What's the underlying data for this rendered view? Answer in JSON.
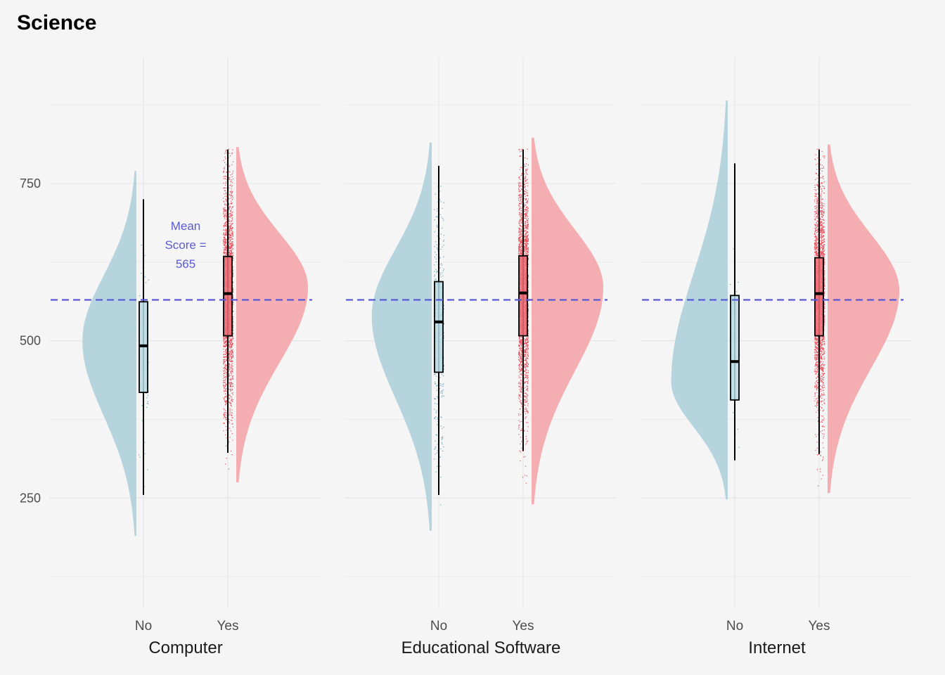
{
  "chart_data": {
    "type": "raincloud",
    "title": "Science",
    "y_ticks": [
      250,
      500,
      750
    ],
    "y_range": [
      75,
      950
    ],
    "categories": [
      "No",
      "Yes"
    ],
    "mean_line": {
      "value": 565,
      "color": "#5a5ad6"
    },
    "annotation": {
      "lines": [
        "Mean",
        "Score =",
        "565"
      ]
    },
    "colors": {
      "No": "#aed0db",
      "Yes": "#f4a5aa",
      "No_points": "#5f9fb3",
      "Yes_points": "#e8505d",
      "No_box": "#b8dbe5",
      "Yes_box": "#f07078"
    },
    "panels": [
      {
        "label": "Computer",
        "groups": {
          "No": {
            "min": 255,
            "q1": 418,
            "median": 492,
            "q3": 562,
            "max": 725,
            "density_min": 190,
            "density_max": 770,
            "density_mode": 500,
            "density_width": 0.64,
            "n_points": 60
          },
          "Yes": {
            "min": 322,
            "q1": 508,
            "median": 575,
            "q3": 634,
            "max": 804,
            "density_min": 275,
            "density_max": 808,
            "density_mode": 585,
            "density_width": 0.85,
            "n_points": 2500
          }
        }
      },
      {
        "label": "Educational Software",
        "groups": {
          "No": {
            "min": 255,
            "q1": 450,
            "median": 530,
            "q3": 594,
            "max": 778,
            "density_min": 198,
            "density_max": 815,
            "density_mode": 540,
            "density_width": 0.71,
            "n_points": 350
          },
          "Yes": {
            "min": 325,
            "q1": 508,
            "median": 576,
            "q3": 635,
            "max": 804,
            "density_min": 240,
            "density_max": 823,
            "density_mode": 585,
            "density_width": 0.85,
            "n_points": 2500
          }
        }
      },
      {
        "label": "Internet",
        "groups": {
          "No": {
            "min": 310,
            "q1": 406,
            "median": 467,
            "q3": 572,
            "max": 782,
            "density_min": 248,
            "density_max": 882,
            "density_mode": 435,
            "density_width": 0.67,
            "n_points": 20
          },
          "Yes": {
            "min": 320,
            "q1": 508,
            "median": 575,
            "q3": 632,
            "max": 804,
            "density_min": 258,
            "density_max": 812,
            "density_mode": 580,
            "density_width": 0.85,
            "n_points": 2500
          }
        }
      }
    ]
  }
}
